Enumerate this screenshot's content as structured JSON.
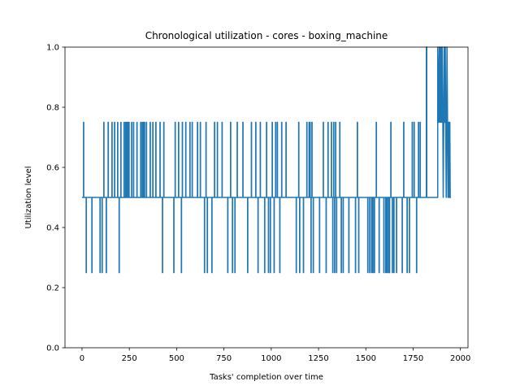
{
  "chart_data": {
    "type": "line",
    "title": "Chronological utilization - cores - boxing_machine",
    "xlabel": "Tasks' completion over time",
    "ylabel": "Utilization level",
    "xlim": [
      -90,
      2040
    ],
    "ylim": [
      0.0,
      1.0
    ],
    "xticks": [
      0,
      250,
      500,
      750,
      1000,
      1250,
      1500,
      1750,
      2000
    ],
    "yticks": [
      0.0,
      0.2,
      0.4,
      0.6,
      0.8,
      1.0
    ],
    "xtick_labels": [
      "0",
      "250",
      "500",
      "750",
      "1000",
      "1250",
      "1500",
      "1750",
      "2000"
    ],
    "ytick_labels": [
      "0.0",
      "0.2",
      "0.4",
      "0.6",
      "0.8",
      "1.0"
    ],
    "grid": false,
    "legend": "none",
    "color": "#1f77b4",
    "baseline": 0.5,
    "x_end": 1950,
    "series": [
      {
        "start": 0,
        "events": [
          [
            8,
            0.75
          ],
          [
            22,
            0.25
          ],
          [
            52,
            0.25
          ],
          [
            95,
            0.25
          ],
          [
            106,
            0.25
          ],
          [
            115,
            0.75
          ],
          [
            128,
            0.25
          ],
          [
            138,
            0.75
          ],
          [
            158,
            0.75
          ],
          [
            172,
            0.75
          ],
          [
            188,
            0.75
          ],
          [
            196,
            0.25
          ],
          [
            205,
            0.75
          ],
          [
            222,
            0.75
          ],
          [
            230,
            0.75
          ],
          [
            236,
            0.75
          ],
          [
            242,
            0.75
          ],
          [
            248,
            0.75
          ],
          [
            262,
            0.75
          ],
          [
            272,
            0.75
          ],
          [
            290,
            0.75
          ],
          [
            310,
            0.75
          ],
          [
            318,
            0.75
          ],
          [
            324,
            0.75
          ],
          [
            330,
            0.75
          ],
          [
            340,
            0.75
          ],
          [
            360,
            0.75
          ],
          [
            374,
            0.75
          ],
          [
            390,
            0.75
          ],
          [
            412,
            0.75
          ],
          [
            425,
            0.25
          ],
          [
            432,
            0.75
          ],
          [
            485,
            0.25
          ],
          [
            492,
            0.75
          ],
          [
            510,
            0.75
          ],
          [
            525,
            0.25
          ],
          [
            530,
            0.75
          ],
          [
            548,
            0.75
          ],
          [
            570,
            0.75
          ],
          [
            582,
            0.75
          ],
          [
            610,
            0.75
          ],
          [
            625,
            0.75
          ],
          [
            647,
            0.25
          ],
          [
            655,
            0.75
          ],
          [
            662,
            0.25
          ],
          [
            686,
            0.25
          ],
          [
            700,
            0.75
          ],
          [
            715,
            0.75
          ],
          [
            740,
            0.75
          ],
          [
            770,
            0.25
          ],
          [
            785,
            0.75
          ],
          [
            795,
            0.25
          ],
          [
            808,
            0.25
          ],
          [
            820,
            0.75
          ],
          [
            850,
            0.75
          ],
          [
            875,
            0.25
          ],
          [
            895,
            0.75
          ],
          [
            918,
            0.75
          ],
          [
            930,
            0.25
          ],
          [
            942,
            0.75
          ],
          [
            965,
            0.25
          ],
          [
            975,
            0.75
          ],
          [
            985,
            0.25
          ],
          [
            995,
            0.25
          ],
          [
            1005,
            0.75
          ],
          [
            1015,
            0.25
          ],
          [
            1023,
            0.75
          ],
          [
            1032,
            0.75
          ],
          [
            1045,
            0.25
          ],
          [
            1055,
            0.75
          ],
          [
            1078,
            0.75
          ],
          [
            1132,
            0.25
          ],
          [
            1145,
            0.75
          ],
          [
            1150,
            0.25
          ],
          [
            1170,
            0.25
          ],
          [
            1188,
            0.75
          ],
          [
            1200,
            0.75
          ],
          [
            1205,
            0.75
          ],
          [
            1210,
            0.25
          ],
          [
            1215,
            0.75
          ],
          [
            1222,
            0.25
          ],
          [
            1255,
            0.25
          ],
          [
            1275,
            0.75
          ],
          [
            1290,
            0.25
          ],
          [
            1300,
            0.75
          ],
          [
            1318,
            0.75
          ],
          [
            1325,
            0.25
          ],
          [
            1330,
            0.75
          ],
          [
            1335,
            0.25
          ],
          [
            1340,
            0.75
          ],
          [
            1345,
            0.25
          ],
          [
            1362,
            0.75
          ],
          [
            1370,
            0.25
          ],
          [
            1380,
            0.25
          ],
          [
            1410,
            0.25
          ],
          [
            1445,
            0.25
          ],
          [
            1455,
            0.75
          ],
          [
            1462,
            0.25
          ],
          [
            1510,
            0.25
          ],
          [
            1520,
            0.25
          ],
          [
            1530,
            0.25
          ],
          [
            1537,
            0.25
          ],
          [
            1545,
            0.25
          ],
          [
            1555,
            0.75
          ],
          [
            1570,
            0.25
          ],
          [
            1595,
            0.25
          ],
          [
            1605,
            0.25
          ],
          [
            1612,
            0.25
          ],
          [
            1620,
            0.25
          ],
          [
            1625,
            0.25
          ],
          [
            1632,
            0.75
          ],
          [
            1640,
            0.25
          ],
          [
            1648,
            0.25
          ],
          [
            1662,
            0.25
          ],
          [
            1692,
            0.25
          ],
          [
            1700,
            0.75
          ],
          [
            1718,
            0.25
          ],
          [
            1730,
            0.25
          ],
          [
            1745,
            0.75
          ],
          [
            1755,
            0.75
          ],
          [
            1768,
            0.25
          ],
          [
            1778,
            0.75
          ],
          [
            1787,
            0.75
          ]
        ],
        "tail": [
          [
            1820,
            0.5
          ],
          [
            1820,
            1.0
          ],
          [
            1822,
            1.0
          ],
          [
            1822,
            0.5
          ],
          [
            1880,
            0.5
          ],
          [
            1880,
            1.0
          ],
          [
            1884,
            0.75
          ],
          [
            1888,
            1.0
          ],
          [
            1890,
            0.75
          ],
          [
            1893,
            1.0
          ],
          [
            1896,
            0.75
          ],
          [
            1899,
            1.0
          ],
          [
            1902,
            0.75
          ],
          [
            1904,
            1.0
          ],
          [
            1907,
            0.75
          ],
          [
            1909,
            0.5
          ],
          [
            1912,
            0.75
          ],
          [
            1914,
            1.0
          ],
          [
            1917,
            0.75
          ],
          [
            1920,
            1.0
          ],
          [
            1922,
            0.75
          ],
          [
            1925,
            0.5
          ],
          [
            1927,
            0.75
          ],
          [
            1929,
            1.0
          ],
          [
            1932,
            0.75
          ],
          [
            1934,
            0.5
          ],
          [
            1936,
            0.75
          ],
          [
            1938,
            0.5
          ],
          [
            1940,
            0.75
          ],
          [
            1942,
            0.5
          ],
          [
            1944,
            0.75
          ],
          [
            1946,
            0.5
          ],
          [
            1950,
            0.5
          ]
        ]
      }
    ]
  }
}
